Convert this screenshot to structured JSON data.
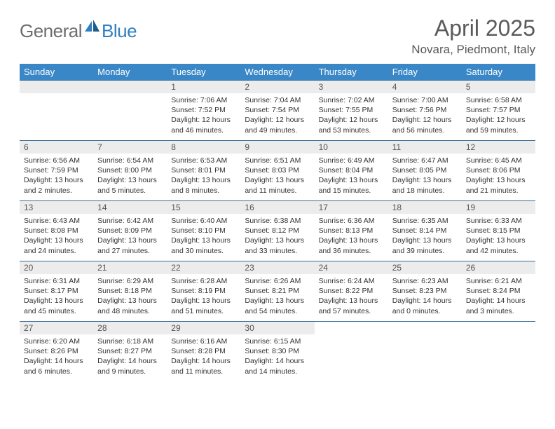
{
  "logo": {
    "general": "General",
    "blue": "Blue"
  },
  "title": "April 2025",
  "location": "Novara, Piedmont, Italy",
  "colors": {
    "header_bg": "#3a87c7",
    "header_text": "#ffffff",
    "daynum_bg": "#ececec",
    "row_border": "#3a6b95",
    "logo_gray": "#6d6d6d",
    "logo_blue": "#2f7fc1",
    "title_color": "#5a5a5a"
  },
  "weekdays": [
    "Sunday",
    "Monday",
    "Tuesday",
    "Wednesday",
    "Thursday",
    "Friday",
    "Saturday"
  ],
  "weeks": [
    [
      {
        "empty": true
      },
      {
        "empty": true
      },
      {
        "day": "1",
        "sunrise": "Sunrise: 7:06 AM",
        "sunset": "Sunset: 7:52 PM",
        "daylight": "Daylight: 12 hours and 46 minutes."
      },
      {
        "day": "2",
        "sunrise": "Sunrise: 7:04 AM",
        "sunset": "Sunset: 7:54 PM",
        "daylight": "Daylight: 12 hours and 49 minutes."
      },
      {
        "day": "3",
        "sunrise": "Sunrise: 7:02 AM",
        "sunset": "Sunset: 7:55 PM",
        "daylight": "Daylight: 12 hours and 53 minutes."
      },
      {
        "day": "4",
        "sunrise": "Sunrise: 7:00 AM",
        "sunset": "Sunset: 7:56 PM",
        "daylight": "Daylight: 12 hours and 56 minutes."
      },
      {
        "day": "5",
        "sunrise": "Sunrise: 6:58 AM",
        "sunset": "Sunset: 7:57 PM",
        "daylight": "Daylight: 12 hours and 59 minutes."
      }
    ],
    [
      {
        "day": "6",
        "sunrise": "Sunrise: 6:56 AM",
        "sunset": "Sunset: 7:59 PM",
        "daylight": "Daylight: 13 hours and 2 minutes."
      },
      {
        "day": "7",
        "sunrise": "Sunrise: 6:54 AM",
        "sunset": "Sunset: 8:00 PM",
        "daylight": "Daylight: 13 hours and 5 minutes."
      },
      {
        "day": "8",
        "sunrise": "Sunrise: 6:53 AM",
        "sunset": "Sunset: 8:01 PM",
        "daylight": "Daylight: 13 hours and 8 minutes."
      },
      {
        "day": "9",
        "sunrise": "Sunrise: 6:51 AM",
        "sunset": "Sunset: 8:03 PM",
        "daylight": "Daylight: 13 hours and 11 minutes."
      },
      {
        "day": "10",
        "sunrise": "Sunrise: 6:49 AM",
        "sunset": "Sunset: 8:04 PM",
        "daylight": "Daylight: 13 hours and 15 minutes."
      },
      {
        "day": "11",
        "sunrise": "Sunrise: 6:47 AM",
        "sunset": "Sunset: 8:05 PM",
        "daylight": "Daylight: 13 hours and 18 minutes."
      },
      {
        "day": "12",
        "sunrise": "Sunrise: 6:45 AM",
        "sunset": "Sunset: 8:06 PM",
        "daylight": "Daylight: 13 hours and 21 minutes."
      }
    ],
    [
      {
        "day": "13",
        "sunrise": "Sunrise: 6:43 AM",
        "sunset": "Sunset: 8:08 PM",
        "daylight": "Daylight: 13 hours and 24 minutes."
      },
      {
        "day": "14",
        "sunrise": "Sunrise: 6:42 AM",
        "sunset": "Sunset: 8:09 PM",
        "daylight": "Daylight: 13 hours and 27 minutes."
      },
      {
        "day": "15",
        "sunrise": "Sunrise: 6:40 AM",
        "sunset": "Sunset: 8:10 PM",
        "daylight": "Daylight: 13 hours and 30 minutes."
      },
      {
        "day": "16",
        "sunrise": "Sunrise: 6:38 AM",
        "sunset": "Sunset: 8:12 PM",
        "daylight": "Daylight: 13 hours and 33 minutes."
      },
      {
        "day": "17",
        "sunrise": "Sunrise: 6:36 AM",
        "sunset": "Sunset: 8:13 PM",
        "daylight": "Daylight: 13 hours and 36 minutes."
      },
      {
        "day": "18",
        "sunrise": "Sunrise: 6:35 AM",
        "sunset": "Sunset: 8:14 PM",
        "daylight": "Daylight: 13 hours and 39 minutes."
      },
      {
        "day": "19",
        "sunrise": "Sunrise: 6:33 AM",
        "sunset": "Sunset: 8:15 PM",
        "daylight": "Daylight: 13 hours and 42 minutes."
      }
    ],
    [
      {
        "day": "20",
        "sunrise": "Sunrise: 6:31 AM",
        "sunset": "Sunset: 8:17 PM",
        "daylight": "Daylight: 13 hours and 45 minutes."
      },
      {
        "day": "21",
        "sunrise": "Sunrise: 6:29 AM",
        "sunset": "Sunset: 8:18 PM",
        "daylight": "Daylight: 13 hours and 48 minutes."
      },
      {
        "day": "22",
        "sunrise": "Sunrise: 6:28 AM",
        "sunset": "Sunset: 8:19 PM",
        "daylight": "Daylight: 13 hours and 51 minutes."
      },
      {
        "day": "23",
        "sunrise": "Sunrise: 6:26 AM",
        "sunset": "Sunset: 8:21 PM",
        "daylight": "Daylight: 13 hours and 54 minutes."
      },
      {
        "day": "24",
        "sunrise": "Sunrise: 6:24 AM",
        "sunset": "Sunset: 8:22 PM",
        "daylight": "Daylight: 13 hours and 57 minutes."
      },
      {
        "day": "25",
        "sunrise": "Sunrise: 6:23 AM",
        "sunset": "Sunset: 8:23 PM",
        "daylight": "Daylight: 14 hours and 0 minutes."
      },
      {
        "day": "26",
        "sunrise": "Sunrise: 6:21 AM",
        "sunset": "Sunset: 8:24 PM",
        "daylight": "Daylight: 14 hours and 3 minutes."
      }
    ],
    [
      {
        "day": "27",
        "sunrise": "Sunrise: 6:20 AM",
        "sunset": "Sunset: 8:26 PM",
        "daylight": "Daylight: 14 hours and 6 minutes."
      },
      {
        "day": "28",
        "sunrise": "Sunrise: 6:18 AM",
        "sunset": "Sunset: 8:27 PM",
        "daylight": "Daylight: 14 hours and 9 minutes."
      },
      {
        "day": "29",
        "sunrise": "Sunrise: 6:16 AM",
        "sunset": "Sunset: 8:28 PM",
        "daylight": "Daylight: 14 hours and 11 minutes."
      },
      {
        "day": "30",
        "sunrise": "Sunrise: 6:15 AM",
        "sunset": "Sunset: 8:30 PM",
        "daylight": "Daylight: 14 hours and 14 minutes."
      },
      {
        "blank": true
      },
      {
        "blank": true
      },
      {
        "blank": true
      }
    ]
  ]
}
